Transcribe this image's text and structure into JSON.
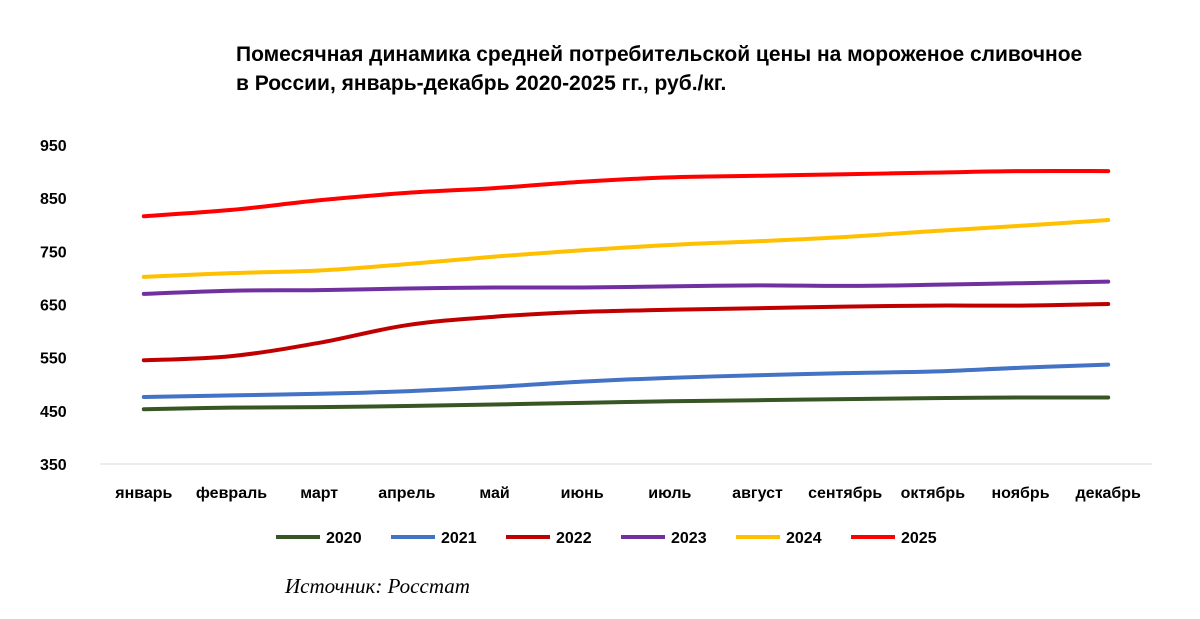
{
  "chart_data": {
    "type": "line",
    "title": "Помесячная динамика средней потребительской цены на мороженое сливочное в России, январь-декабрь 2020-2025 гг., руб./кг.",
    "categories": [
      "январь",
      "февраль",
      "март",
      "апрель",
      "май",
      "июнь",
      "июль",
      "август",
      "сентябрь",
      "октябрь",
      "ноябрь",
      "декабрь"
    ],
    "y_ticks": [
      "950",
      "850",
      "750",
      "650",
      "550",
      "450",
      "350"
    ],
    "ylim": [
      350,
      950
    ],
    "grid": false,
    "legend_position": "bottom",
    "series": [
      {
        "name": "2020",
        "color": "#375623",
        "values": [
          453,
          456,
          457,
          459,
          462,
          465,
          468,
          470,
          472,
          474,
          475,
          475
        ]
      },
      {
        "name": "2021",
        "color": "#4472C4",
        "values": [
          476,
          479,
          482,
          487,
          495,
          505,
          512,
          517,
          521,
          524,
          531,
          537
        ]
      },
      {
        "name": "2022",
        "color": "#C00000",
        "values": [
          545,
          553,
          578,
          611,
          627,
          636,
          640,
          643,
          646,
          648,
          648,
          651
        ]
      },
      {
        "name": "2023",
        "color": "#7030A0",
        "values": [
          670,
          676,
          677,
          680,
          682,
          682,
          684,
          686,
          685,
          687,
          690,
          693
        ]
      },
      {
        "name": "2024",
        "color": "#FFC000",
        "values": [
          702,
          709,
          714,
          726,
          740,
          752,
          762,
          769,
          777,
          788,
          798,
          809
        ]
      },
      {
        "name": "2025",
        "color": "#FF0000",
        "values": [
          816,
          828,
          846,
          860,
          869,
          881,
          889,
          892,
          895,
          898,
          901,
          901
        ]
      }
    ]
  },
  "source": "Источник: Росстат"
}
